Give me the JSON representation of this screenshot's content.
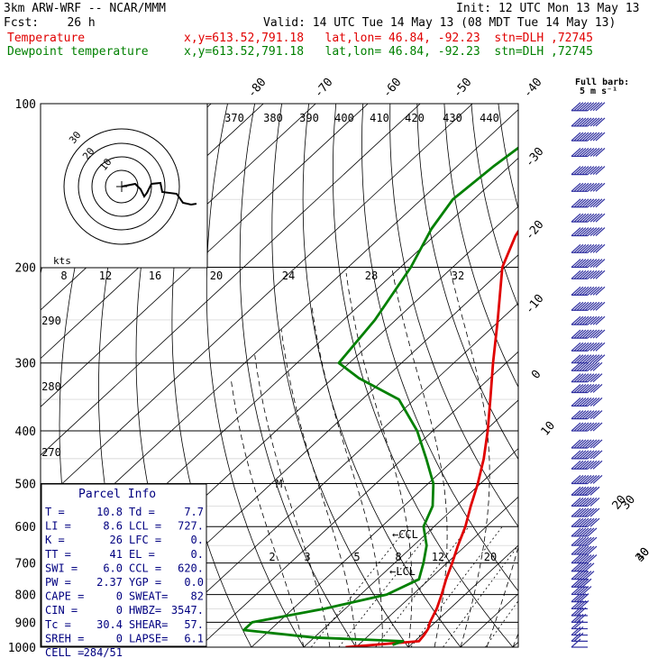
{
  "header": {
    "model": "3km ARW-WRF -- NCAR/MMM",
    "init": "Init: 12 UTC Mon 13 May 13",
    "fcst": "Fcst:    26 h",
    "valid": "Valid: 14 UTC Tue 14 May 13 (08 MDT Tue 14 May 13)",
    "temp_label": "Temperature",
    "dew_label": "Dewpoint temperature",
    "temp_loc": "x,y=613.52,791.18   lat,lon= 46.84, -92.23  stn=DLH ,72745",
    "dew_loc": "x,y=613.52,791.18   lat,lon= 46.84, -92.23  stn=DLH ,72745"
  },
  "colors": {
    "temperature": "#e00000",
    "dewpoint": "#008000",
    "wind": "#3030a0"
  },
  "barb_legend": {
    "line1": "Full barb:",
    "line2": "5 m s⁻¹"
  },
  "parcel_info": {
    "title": "Parcel Info",
    "rows": [
      {
        "l1": "T  =",
        "v1": "10.8",
        "l2": "Td =",
        "v2": "7.7"
      },
      {
        "l1": "LI =",
        "v1": "8.6",
        "l2": "LCL =",
        "v2": "727."
      },
      {
        "l1": "K  =",
        "v1": "26",
        "l2": "LFC =",
        "v2": "0."
      },
      {
        "l1": "TT =",
        "v1": "41",
        "l2": "EL  =",
        "v2": "0."
      },
      {
        "l1": "SWI =",
        "v1": "6.0",
        "l2": "CCL =",
        "v2": "620."
      },
      {
        "l1": "PW =",
        "v1": "2.37",
        "l2": "YGP =",
        "v2": "0.0"
      },
      {
        "l1": "CAPE =",
        "v1": "0",
        "l2": "SWEAT=",
        "v2": "82"
      },
      {
        "l1": "CIN =",
        "v1": "0",
        "l2": "HWBZ=",
        "v2": "3547."
      },
      {
        "l1": "Tc =",
        "v1": "30.4",
        "l2": "SHEAR=",
        "v2": "57."
      },
      {
        "l1": "SREH =",
        "v1": "0",
        "l2": "LAPSE=",
        "v2": "6.1"
      },
      {
        "l1": "CELL =",
        "v1": "284/51",
        "l2": "",
        "v2": ""
      }
    ]
  },
  "chart_data": {
    "type": "line",
    "pressure_ticks": [
      "100",
      "200",
      "300",
      "400",
      "500",
      "600",
      "700",
      "800",
      "900",
      "1000"
    ],
    "isotherm_labels": [
      "-80",
      "-70",
      "-60",
      "-50",
      "-40",
      "-30",
      "-20",
      "-10",
      "0",
      "10",
      "20",
      "30",
      "40"
    ],
    "theta_labels": [
      "370",
      "380",
      "390",
      "400",
      "410",
      "420",
      "430",
      "440"
    ],
    "theta_left_labels": [
      "290",
      "280",
      "270"
    ],
    "mixing_ratio_labels": [
      "2",
      "3",
      "5",
      "8",
      "12",
      "20"
    ],
    "hodograph": {
      "unit_label": "kts",
      "ring_labels": [
        "30",
        "20",
        "10"
      ],
      "speed_labels": [
        "8",
        "12",
        "16",
        "20",
        "24",
        "28",
        "32"
      ]
    },
    "annotations": [
      "CCL",
      "LCL"
    ],
    "series": [
      {
        "name": "Temperature",
        "points": [
          [
            1000,
            -2.0
          ],
          [
            975,
            10.8
          ],
          [
            950,
            10.5
          ],
          [
            925,
            10.0
          ],
          [
            900,
            9.0
          ],
          [
            850,
            7.5
          ],
          [
            800,
            5.5
          ],
          [
            750,
            3.2
          ],
          [
            700,
            1.0
          ],
          [
            650,
            -1.5
          ],
          [
            600,
            -4.0
          ],
          [
            550,
            -7.2
          ],
          [
            500,
            -10.5
          ],
          [
            450,
            -14.5
          ],
          [
            400,
            -19.5
          ],
          [
            350,
            -25.5
          ],
          [
            300,
            -32.5
          ],
          [
            250,
            -40.5
          ],
          [
            200,
            -50.5
          ],
          [
            175,
            -54.5
          ],
          [
            150,
            -57.5
          ],
          [
            130,
            -58.5
          ],
          [
            115,
            -59.5
          ],
          [
            100,
            -60.5
          ]
        ]
      },
      {
        "name": "Dewpoint temperature",
        "points": [
          [
            990,
            6.5
          ],
          [
            975,
            7.7
          ],
          [
            960,
            -10.0
          ],
          [
            930,
            -25.0
          ],
          [
            900,
            -25.0
          ],
          [
            850,
            -14.0
          ],
          [
            800,
            -5.0
          ],
          [
            750,
            -2.0
          ],
          [
            700,
            -4.5
          ],
          [
            650,
            -7.5
          ],
          [
            600,
            -12.0
          ],
          [
            550,
            -14.5
          ],
          [
            500,
            -19.0
          ],
          [
            450,
            -25.5
          ],
          [
            400,
            -33.0
          ],
          [
            350,
            -43.0
          ],
          [
            320,
            -55.0
          ],
          [
            300,
            -62.0
          ],
          [
            250,
            -64.0
          ],
          [
            200,
            -68.0
          ],
          [
            170,
            -72.0
          ],
          [
            150,
            -74.0
          ],
          [
            130,
            -73.0
          ],
          [
            115,
            -71.5
          ],
          [
            100,
            -70.5
          ]
        ]
      }
    ],
    "wind_barbs": [
      [
        1000,
        1
      ],
      [
        975,
        2
      ],
      [
        950,
        2
      ],
      [
        925,
        2
      ],
      [
        900,
        3
      ],
      [
        875,
        3
      ],
      [
        850,
        4
      ],
      [
        825,
        4
      ],
      [
        800,
        5
      ],
      [
        775,
        5
      ],
      [
        750,
        6
      ],
      [
        725,
        6
      ],
      [
        700,
        7
      ],
      [
        675,
        7
      ],
      [
        650,
        7
      ],
      [
        625,
        7
      ],
      [
        600,
        8
      ],
      [
        575,
        8
      ],
      [
        550,
        8
      ],
      [
        525,
        8
      ],
      [
        500,
        9
      ],
      [
        470,
        9
      ],
      [
        450,
        9
      ],
      [
        430,
        9
      ],
      [
        400,
        9
      ],
      [
        380,
        9
      ],
      [
        360,
        9
      ],
      [
        340,
        9
      ],
      [
        325,
        9
      ],
      [
        310,
        9
      ],
      [
        300,
        10
      ],
      [
        285,
        10
      ],
      [
        270,
        10
      ],
      [
        255,
        10
      ],
      [
        240,
        10
      ],
      [
        225,
        10
      ],
      [
        210,
        10
      ],
      [
        200,
        10
      ],
      [
        188,
        10
      ],
      [
        175,
        10
      ],
      [
        165,
        10
      ],
      [
        155,
        10
      ],
      [
        145,
        10
      ],
      [
        135,
        10
      ],
      [
        125,
        10
      ],
      [
        117,
        10
      ],
      [
        110,
        10
      ],
      [
        103,
        10
      ]
    ]
  }
}
